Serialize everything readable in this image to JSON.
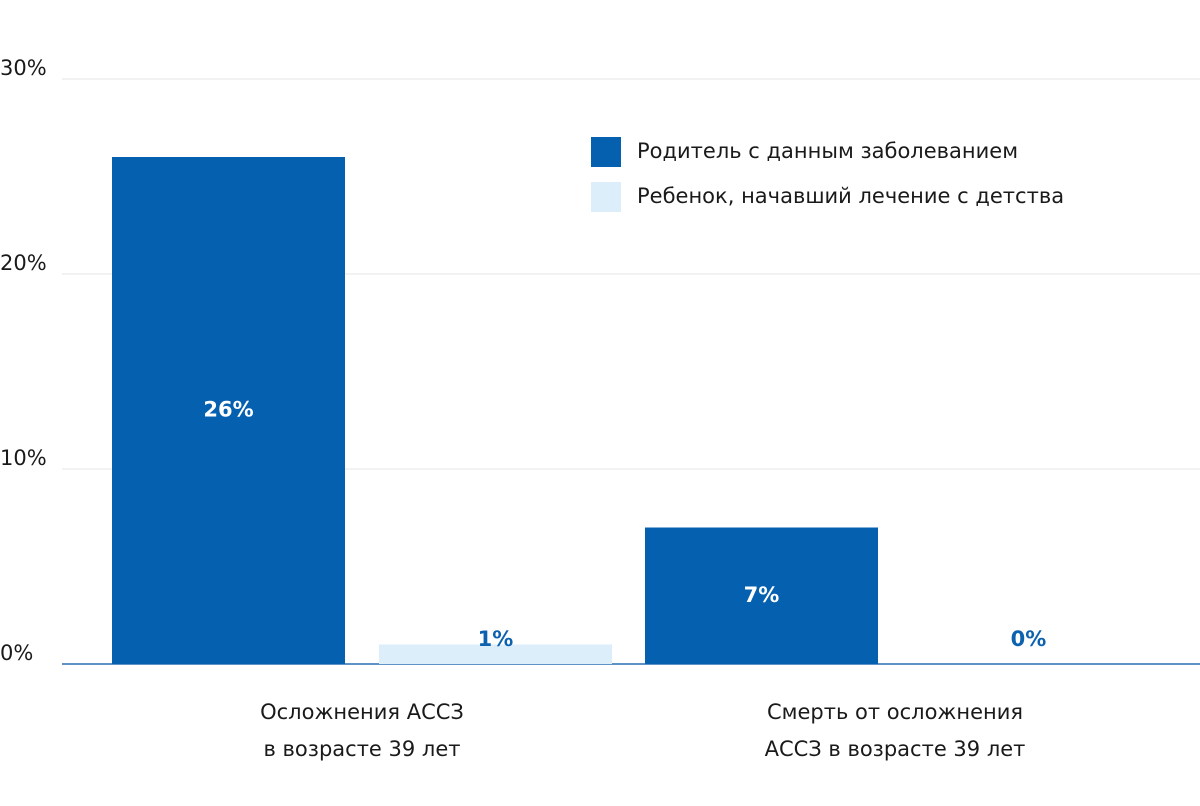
{
  "chart_data": {
    "type": "bar",
    "categories": [
      [
        "Осложнения АССЗ",
        "в возрасте 39 лет"
      ],
      [
        "Смерть от осложнения",
        "АССЗ в возрасте 39 лет"
      ]
    ],
    "series": [
      {
        "name": "Родитель с данным заболеванием",
        "color": "#0560b0",
        "values": [
          26,
          7
        ],
        "value_labels": [
          "26%",
          "7%"
        ],
        "label_color": "#ffffff"
      },
      {
        "name": "Ребенок, начавший лечение с детства",
        "color": "#ddeefb",
        "values": [
          1,
          0
        ],
        "value_labels": [
          "1%",
          "0%"
        ],
        "label_color": "#0d62b0"
      }
    ],
    "ylim": [
      0,
      30
    ],
    "yticks": [
      {
        "value": 0,
        "label": "0%"
      },
      {
        "value": 10,
        "label": "10%"
      },
      {
        "value": 20,
        "label": "20%"
      },
      {
        "value": 30,
        "label": "30%"
      }
    ],
    "grid": true,
    "legend": "upper right"
  }
}
